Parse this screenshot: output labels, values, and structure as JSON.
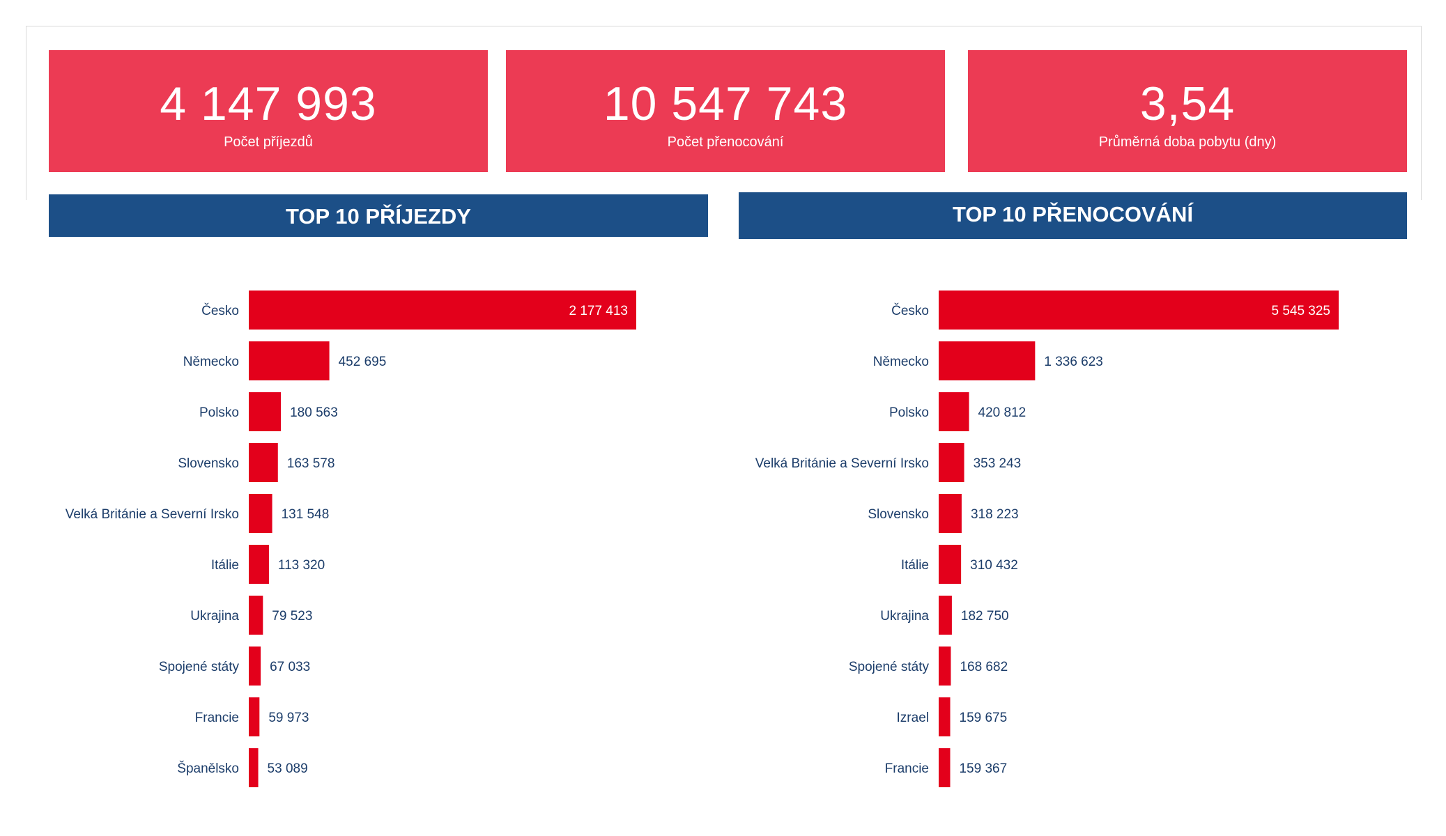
{
  "colors": {
    "kpi_background": "#ec3b54",
    "banner_background": "#1c4f87",
    "bar": "#e3001b",
    "label_text": "#1c3d6a"
  },
  "kpis": [
    {
      "value": "4 147 993",
      "label": "Počet příjezdů"
    },
    {
      "value": "10 547 743",
      "label": "Počet přenocování"
    },
    {
      "value": "3,54",
      "label": "Průměrná doba pobytu (dny)"
    }
  ],
  "chart_data": [
    {
      "type": "bar",
      "orientation": "horizontal",
      "title": "TOP 10 PŘÍJEZDY",
      "categories": [
        "Česko",
        "Německo",
        "Polsko",
        "Slovensko",
        "Velká Británie a Severní Irsko",
        "Itálie",
        "Ukrajina",
        "Spojené státy",
        "Francie",
        "Španělsko"
      ],
      "values": [
        2177413,
        452695,
        180563,
        163578,
        131548,
        113320,
        79523,
        67033,
        59973,
        53089
      ],
      "value_labels": [
        "2 177 413",
        "452 695",
        "180 563",
        "163 578",
        "131 548",
        "113 320",
        "79 523",
        "67 033",
        "59 973",
        "53 089"
      ]
    },
    {
      "type": "bar",
      "orientation": "horizontal",
      "title": "TOP 10 PŘENOCOVÁNÍ",
      "categories": [
        "Česko",
        "Německo",
        "Polsko",
        "Velká Británie a Severní Irsko",
        "Slovensko",
        "Itálie",
        "Ukrajina",
        "Spojené státy",
        "Izrael",
        "Francie"
      ],
      "values": [
        5545325,
        1336623,
        420812,
        353243,
        318223,
        310432,
        182750,
        168682,
        159675,
        159367
      ],
      "value_labels": [
        "5 545 325",
        "1 336 623",
        "420 812",
        "353 243",
        "318 223",
        "310 432",
        "182 750",
        "168 682",
        "159 675",
        "159 367"
      ]
    }
  ]
}
